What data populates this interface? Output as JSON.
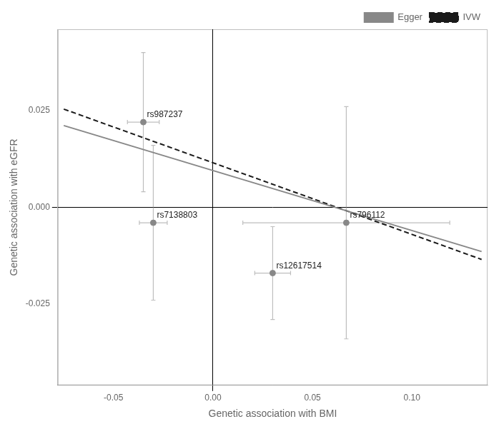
{
  "chart_data": {
    "type": "scatter",
    "xlabel": "Genetic association with BMI",
    "ylabel": "Genetic association with eGFR",
    "series": [
      {
        "type": "scatter",
        "marker": "circle",
        "color": "#888888",
        "x": [
          -0.035,
          -0.03,
          0.03,
          0.067
        ],
        "values": [
          0.022,
          -0.004,
          -0.017,
          -0.004
        ],
        "xerr": [
          0.008,
          0.007,
          0.009,
          0.052
        ],
        "yerr": [
          0.018,
          0.02,
          0.012,
          0.03
        ]
      },
      {
        "name": "Egger",
        "type": "line",
        "line_style": "solid",
        "color": "#888888",
        "x": [
          -0.075,
          0.135
        ],
        "values": [
          0.021125,
          -0.011425
        ]
      },
      {
        "name": "IVW",
        "type": "line",
        "line_style": "dashed",
        "color": "#1a1a1a",
        "x": [
          -0.075,
          0.135
        ],
        "values": [
          0.025375,
          -0.013475
        ]
      }
    ],
    "annotations": [
      {
        "text": "rs987237",
        "x": -0.035,
        "y": 0.022
      },
      {
        "text": "rs7138803",
        "x": -0.03,
        "y": -0.004
      },
      {
        "text": "rs12617514",
        "x": 0.03,
        "y": -0.017
      },
      {
        "text": "rs796112",
        "x": 0.067,
        "y": -0.004
      }
    ],
    "xlim": [
      -0.078,
      0.138
    ],
    "ylim": [
      -0.046,
      0.046
    ],
    "xticks": [
      -0.05,
      {
        "value": 0,
        "label": "0.00"
      },
      0.05,
      {
        "value": 0.1,
        "label": "0.10"
      }
    ],
    "yticks": [
      -0.025,
      {
        "value": 0,
        "label": "0.000"
      },
      0.025
    ],
    "grid": false,
    "legend": "upper right"
  }
}
